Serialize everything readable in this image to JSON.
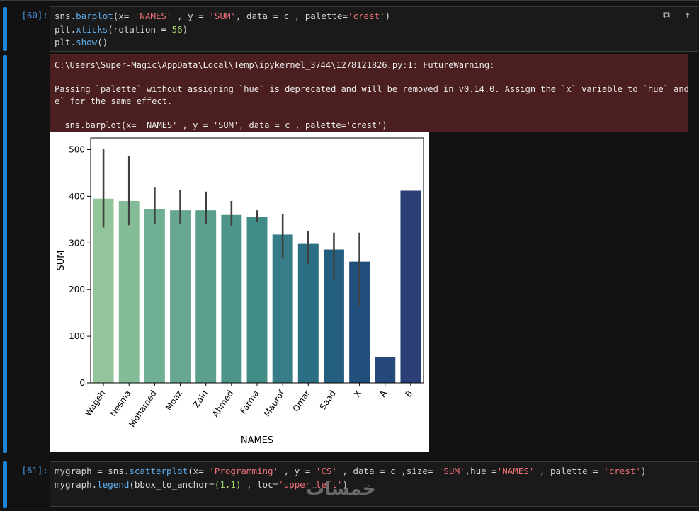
{
  "cells": [
    {
      "prompt": "[60]:",
      "code_lines": [
        [
          [
            "sns.",
            "plain"
          ],
          [
            "barplot",
            "fn"
          ],
          [
            "(x= ",
            "plain"
          ],
          [
            "'NAMES'",
            "str"
          ],
          [
            " , y = ",
            "plain"
          ],
          [
            "'SUM'",
            "str"
          ],
          [
            ", data = c , palette=",
            "plain"
          ],
          [
            "'crest'",
            "str"
          ],
          [
            ")",
            "plain"
          ]
        ],
        [
          [
            "plt.",
            "plain"
          ],
          [
            "xticks",
            "fn"
          ],
          [
            "(rotation = ",
            "plain"
          ],
          [
            "56",
            "num"
          ],
          [
            ")",
            "plain"
          ]
        ],
        [
          [
            "plt.",
            "plain"
          ],
          [
            "show",
            "fn"
          ],
          [
            "()",
            "plain"
          ]
        ]
      ],
      "output_lines": [
        "C:\\Users\\Super-Magic\\AppData\\Local\\Temp\\ipykernel_3744\\1278121826.py:1: FutureWarning:",
        "",
        "Passing `palette` without assigning `hue` is deprecated and will be removed in v0.14.0. Assign the `x` variable to `hue` and se",
        "e` for the same effect.",
        "",
        "  sns.barplot(x= 'NAMES' , y = 'SUM', data = c , palette='crest')"
      ]
    },
    {
      "prompt": "[61]:",
      "code_lines": [
        [
          [
            "mygraph = sns.",
            "plain"
          ],
          [
            "scatterplot",
            "fn"
          ],
          [
            "(x= ",
            "plain"
          ],
          [
            "'Programming'",
            "str"
          ],
          [
            " , y = ",
            "plain"
          ],
          [
            "'CS'",
            "str"
          ],
          [
            " , data = c ,size= ",
            "plain"
          ],
          [
            "'SUM'",
            "str"
          ],
          [
            ",hue =",
            "plain"
          ],
          [
            "'NAMES'",
            "str"
          ],
          [
            " , palette = ",
            "plain"
          ],
          [
            "'crest'",
            "str"
          ],
          [
            ")",
            "plain"
          ]
        ],
        [
          [
            "mygraph.",
            "plain"
          ],
          [
            "legend",
            "fn"
          ],
          [
            "(bbox_to_anchor=",
            "plain"
          ],
          [
            "(1,1)",
            "num"
          ],
          [
            " , loc=",
            "plain"
          ],
          [
            "'upper left'",
            "str"
          ],
          [
            ")",
            "plain"
          ]
        ]
      ]
    }
  ],
  "toolbar": {
    "copy_icon": "copy-icon",
    "up_icon": "arrow-up-icon"
  },
  "watermark": "خمسات",
  "colors": {
    "accent": "#1f83d6",
    "error_bg": "#4b1f1f",
    "string": "#f07178",
    "function": "#61afef",
    "number": "#9ece6a"
  },
  "chart_data": {
    "type": "bar",
    "xlabel": "NAMES",
    "ylabel": "SUM",
    "ylim": [
      0,
      525
    ],
    "yticks": [
      0,
      100,
      200,
      300,
      400,
      500
    ],
    "categories": [
      "Wageh",
      "Nesma",
      "Mohamed",
      "Moaz",
      "Zain",
      "Ahmed",
      "Fatma",
      "Maurof",
      "Omar",
      "Saad",
      "X",
      "A",
      "B"
    ],
    "values": [
      395,
      390,
      373,
      370,
      370,
      360,
      356,
      318,
      298,
      286,
      260,
      55,
      412
    ],
    "error_low": [
      333,
      338,
      341,
      340,
      341,
      336,
      345,
      266,
      255,
      221,
      165,
      null,
      null
    ],
    "error_high": [
      501,
      486,
      420,
      413,
      410,
      390,
      370,
      362,
      326,
      322,
      322,
      null,
      null
    ],
    "colors": [
      "#93c59b",
      "#83bc97",
      "#6faf93",
      "#67a790",
      "#5ba08d",
      "#4d958a",
      "#428c88",
      "#367d87",
      "#2b6f84",
      "#245f80",
      "#204f7c",
      "#26497c",
      "#2c3f76"
    ],
    "xtick_rotation": 56
  }
}
